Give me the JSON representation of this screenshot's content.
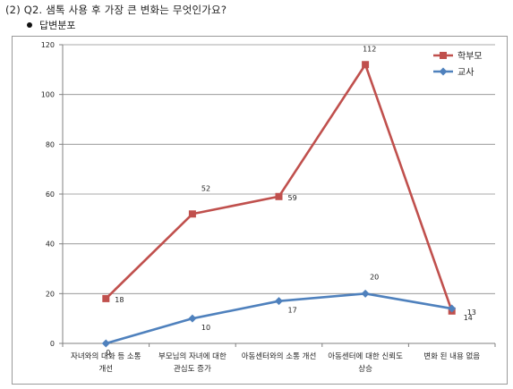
{
  "header": {
    "question": "(2)  Q2. 샘톡 사용 후 가장 큰 변화는 무엇인가요?",
    "section_label": "답변분포"
  },
  "chart_data": {
    "type": "line",
    "categories": [
      [
        "자녀와의 대화 등 소통",
        "개선"
      ],
      [
        "부모님의 자녀에 대한",
        "관심도 증가"
      ],
      [
        "아동센터와의 소통 개선"
      ],
      [
        "아동센터에 대한 신뢰도",
        "상승"
      ],
      [
        "변화 된 내용 없음"
      ]
    ],
    "series": [
      {
        "name": "학부모",
        "values": [
          18,
          52,
          59,
          112,
          13
        ],
        "color": "#c0504d",
        "marker": "square"
      },
      {
        "name": "교사",
        "values": [
          0,
          10,
          17,
          20,
          14
        ],
        "color": "#4f81bd",
        "marker": "diamond"
      }
    ],
    "ylim": [
      0,
      120
    ],
    "yticks": [
      0,
      20,
      40,
      60,
      80,
      100,
      120
    ],
    "grid": true,
    "legend_position": "top-right"
  }
}
